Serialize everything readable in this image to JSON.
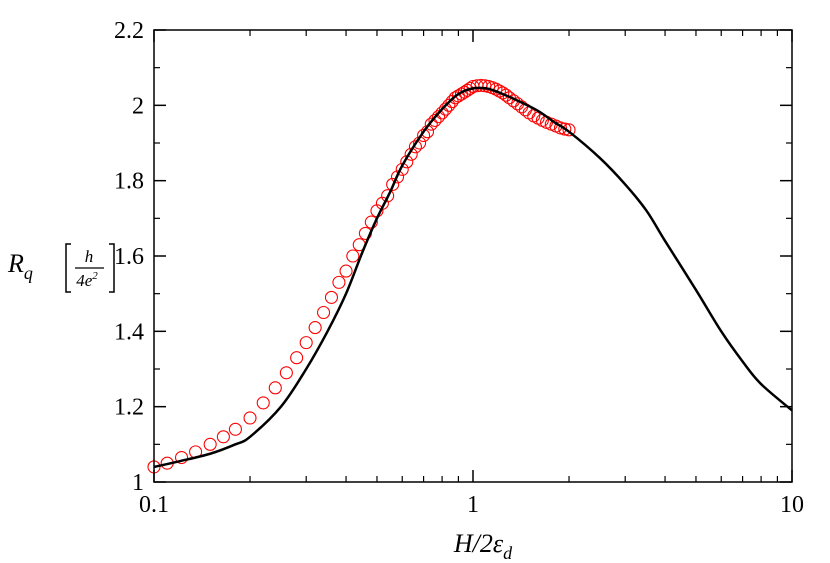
{
  "chart_data": {
    "type": "line",
    "xscale": "log",
    "xlim": [
      0.1,
      10
    ],
    "ylim": [
      1.0,
      2.2
    ],
    "x_ticks": [
      {
        "value": 0.1,
        "label": "0.1"
      },
      {
        "value": 1,
        "label": "1"
      },
      {
        "value": 10,
        "label": "10"
      }
    ],
    "y_ticks": [
      {
        "value": 1.0,
        "label": "1"
      },
      {
        "value": 1.2,
        "label": "1.2"
      },
      {
        "value": 1.4,
        "label": "1.4"
      },
      {
        "value": 1.6,
        "label": "1.6"
      },
      {
        "value": 1.8,
        "label": "1.8"
      },
      {
        "value": 2.0,
        "label": "2"
      },
      {
        "value": 2.2,
        "label": "2.2"
      }
    ],
    "xlabel": {
      "main": "H/2ε",
      "sub": "d"
    },
    "ylabel": {
      "main": "R",
      "sub": "q",
      "numerator": "h",
      "denominator": "4e",
      "denominator_exp": "2"
    },
    "grid": false,
    "series": [
      {
        "style": "line",
        "color": "#000000",
        "x": [
          0.1,
          0.12,
          0.15,
          0.18,
          0.2,
          0.25,
          0.3,
          0.35,
          0.4,
          0.45,
          0.5,
          0.55,
          0.6,
          0.7,
          0.8,
          0.9,
          1.0,
          1.1,
          1.2,
          1.4,
          1.6,
          1.8,
          2.0,
          2.5,
          3.0,
          3.5,
          4.0,
          5.0,
          6.0,
          7.0,
          8.0,
          10.0
        ],
        "y": [
          1.04,
          1.055,
          1.075,
          1.1,
          1.12,
          1.2,
          1.3,
          1.4,
          1.5,
          1.61,
          1.7,
          1.77,
          1.84,
          1.93,
          1.99,
          2.03,
          2.045,
          2.045,
          2.035,
          2.01,
          1.985,
          1.955,
          1.93,
          1.86,
          1.79,
          1.72,
          1.64,
          1.51,
          1.4,
          1.32,
          1.26,
          1.19
        ]
      },
      {
        "style": "markers",
        "marker": "open-circle",
        "color": "#ff0000",
        "x": [
          0.1,
          0.11,
          0.122,
          0.135,
          0.15,
          0.165,
          0.18,
          0.2,
          0.22,
          0.24,
          0.26,
          0.28,
          0.3,
          0.32,
          0.34,
          0.36,
          0.38,
          0.4,
          0.42,
          0.44,
          0.46,
          0.48,
          0.5,
          0.52,
          0.54,
          0.56,
          0.58,
          0.6,
          0.62,
          0.64,
          0.66,
          0.68,
          0.7,
          0.72,
          0.74,
          0.76,
          0.78,
          0.8,
          0.82,
          0.84,
          0.86,
          0.88,
          0.9,
          0.92,
          0.94,
          0.96,
          0.98,
          1.0,
          1.03,
          1.06,
          1.09,
          1.12,
          1.15,
          1.18,
          1.21,
          1.24,
          1.27,
          1.3,
          1.34,
          1.38,
          1.42,
          1.46,
          1.5,
          1.55,
          1.6,
          1.65,
          1.7,
          1.76,
          1.82,
          1.88,
          1.94,
          2.0
        ],
        "y": [
          1.04,
          1.05,
          1.065,
          1.08,
          1.1,
          1.12,
          1.14,
          1.17,
          1.21,
          1.25,
          1.29,
          1.33,
          1.37,
          1.41,
          1.45,
          1.49,
          1.53,
          1.56,
          1.6,
          1.63,
          1.66,
          1.69,
          1.72,
          1.74,
          1.76,
          1.79,
          1.81,
          1.83,
          1.85,
          1.87,
          1.89,
          1.9,
          1.92,
          1.93,
          1.95,
          1.96,
          1.97,
          1.98,
          1.99,
          2.0,
          2.01,
          2.02,
          2.025,
          2.03,
          2.035,
          2.04,
          2.045,
          2.05,
          2.052,
          2.053,
          2.052,
          2.05,
          2.047,
          2.043,
          2.038,
          2.033,
          2.027,
          2.02,
          2.012,
          2.004,
          1.996,
          1.988,
          1.98,
          1.972,
          1.966,
          1.96,
          1.955,
          1.95,
          1.945,
          1.94,
          1.937,
          1.935
        ]
      }
    ]
  }
}
